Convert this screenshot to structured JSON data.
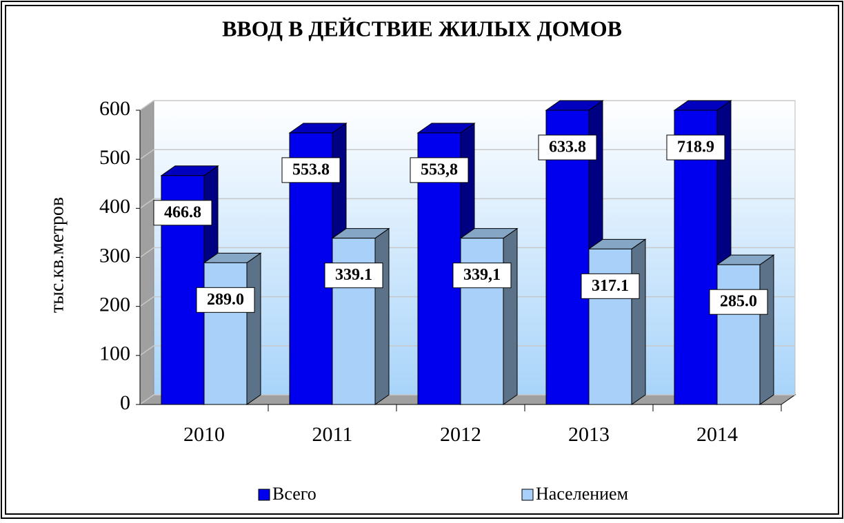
{
  "chart_data": {
    "type": "bar3d",
    "title": "ВВОД В ДЕЙСТВИЕ ЖИЛЫХ ДОМОВ",
    "y_label": "тыс.кв.метров",
    "categories": [
      "2010",
      "2011",
      "2012",
      "2013",
      "2014"
    ],
    "series": [
      {
        "name": "Всего",
        "color": "#0000ee",
        "values": [
          466.8,
          553.8,
          553.8,
          633.8,
          718.9
        ],
        "value_labels": [
          "466.8",
          "553.8",
          "553,8",
          "633.8",
          "718.9"
        ]
      },
      {
        "name": "Населением",
        "color": "#a8d0f8",
        "values": [
          289.0,
          339.1,
          339.1,
          317.1,
          285.0
        ],
        "value_labels": [
          "289.0",
          "339.1",
          "339,1",
          "317.1",
          "285.0"
        ]
      }
    ],
    "ylim": [
      0,
      600
    ],
    "yticks": [
      0,
      100,
      200,
      300,
      400,
      500,
      600
    ],
    "grid": true
  }
}
